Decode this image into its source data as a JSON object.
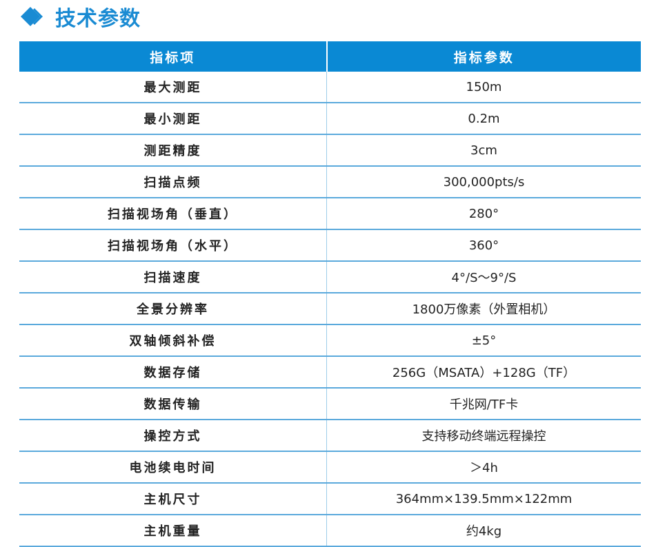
{
  "title": "技术参数",
  "accent": "#0a89d4",
  "table": {
    "headers": [
      "指标项",
      "指标参数"
    ],
    "rows": [
      [
        "最大测距",
        "150m"
      ],
      [
        "最小测距",
        "0.2m"
      ],
      [
        "测距精度",
        "3cm"
      ],
      [
        "扫描点频",
        "300,000pts/s"
      ],
      [
        "扫描视场角（垂直）",
        "280°"
      ],
      [
        "扫描视场角（水平）",
        "360°"
      ],
      [
        "扫描速度",
        "4°/S～9°/S"
      ],
      [
        "全景分辨率",
        "1800万像素（外置相机）"
      ],
      [
        "双轴倾斜补偿",
        "±5°"
      ],
      [
        "数据存储",
        "256G（MSATA）+128G（TF）"
      ],
      [
        "数据传输",
        "千兆网/TF卡"
      ],
      [
        "操控方式",
        "支持移动终端远程操控"
      ],
      [
        "电池续电时间",
        "＞4h"
      ],
      [
        "主机尺寸",
        "364mm×139.5mm×122mm"
      ],
      [
        "主机重量",
        "约4kg"
      ]
    ]
  }
}
